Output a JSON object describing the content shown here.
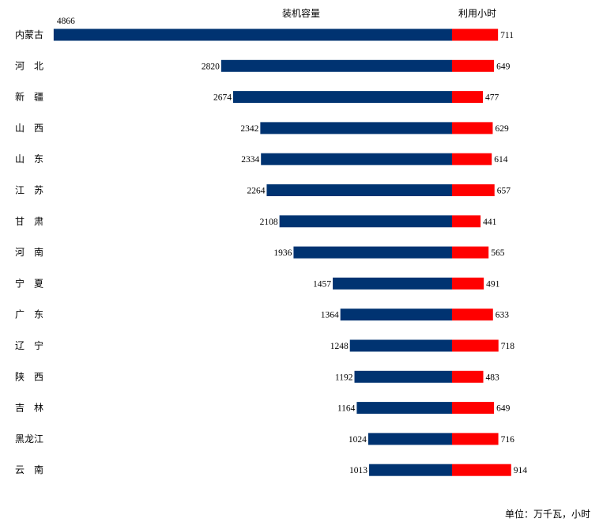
{
  "chart_data": {
    "type": "bar",
    "orientation": "horizontal",
    "categories": [
      "内蒙古",
      "河　北",
      "新　疆",
      "山　西",
      "山　东",
      "江　苏",
      "甘　肃",
      "河　南",
      "宁　夏",
      "广　东",
      "辽　宁",
      "陕　西",
      "吉　林",
      "黑龙江",
      "云　南"
    ],
    "series": [
      {
        "name": "装机容量",
        "color": "#003371",
        "values": [
          4866,
          2820,
          2674,
          2342,
          2334,
          2264,
          2108,
          1936,
          1457,
          1364,
          1248,
          1192,
          1164,
          1024,
          1013
        ]
      },
      {
        "name": "利用小时",
        "color": "#ff0000",
        "values": [
          711,
          649,
          477,
          629,
          614,
          657,
          441,
          565,
          491,
          633,
          718,
          483,
          649,
          716,
          914
        ]
      }
    ],
    "unit": "单位：万千瓦，小时",
    "grid": false,
    "legend": "none"
  }
}
